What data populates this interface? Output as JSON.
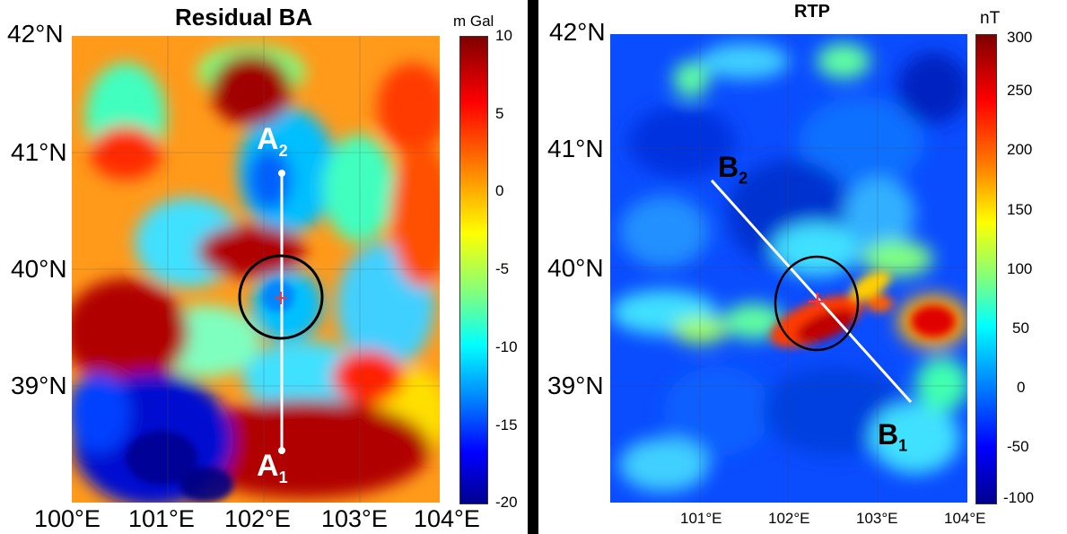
{
  "left_panel": {
    "title": "Residual BA",
    "colorbar": {
      "unit": "m Gal",
      "ticks": [
        "10",
        "5",
        "0",
        "-5",
        "-10",
        "-15",
        "-20"
      ],
      "range": [
        -20,
        10
      ]
    },
    "lat_labels": [
      "42°N",
      "41°N",
      "40°N",
      "39°N"
    ],
    "lon_labels": [
      "100°E",
      "101°E",
      "102°E",
      "103°E",
      "104°E"
    ],
    "profile": {
      "start_label": "A",
      "start_sub": "1",
      "end_label": "A",
      "end_sub": "2"
    },
    "marker": "center-cross"
  },
  "right_panel": {
    "title": "RTP",
    "colorbar": {
      "unit": "nT",
      "ticks": [
        "300",
        "250",
        "200",
        "150",
        "100",
        "50",
        "0",
        "-50",
        "-100"
      ],
      "range": [
        -100,
        300
      ]
    },
    "lat_labels": [
      "42°N",
      "41°N",
      "40°N",
      "39°N"
    ],
    "lon_labels": [
      "101°E",
      "102°E",
      "103°E",
      "104°E"
    ],
    "profile": {
      "start_label": "B",
      "start_sub": "1",
      "end_label": "B",
      "end_sub": "2"
    },
    "marker": "center-cross"
  },
  "colors": {
    "jet": [
      "#00008f",
      "#0000ff",
      "#007fff",
      "#00ffff",
      "#7fff7f",
      "#ffff00",
      "#ff7f00",
      "#ff0000",
      "#7f0000"
    ]
  }
}
